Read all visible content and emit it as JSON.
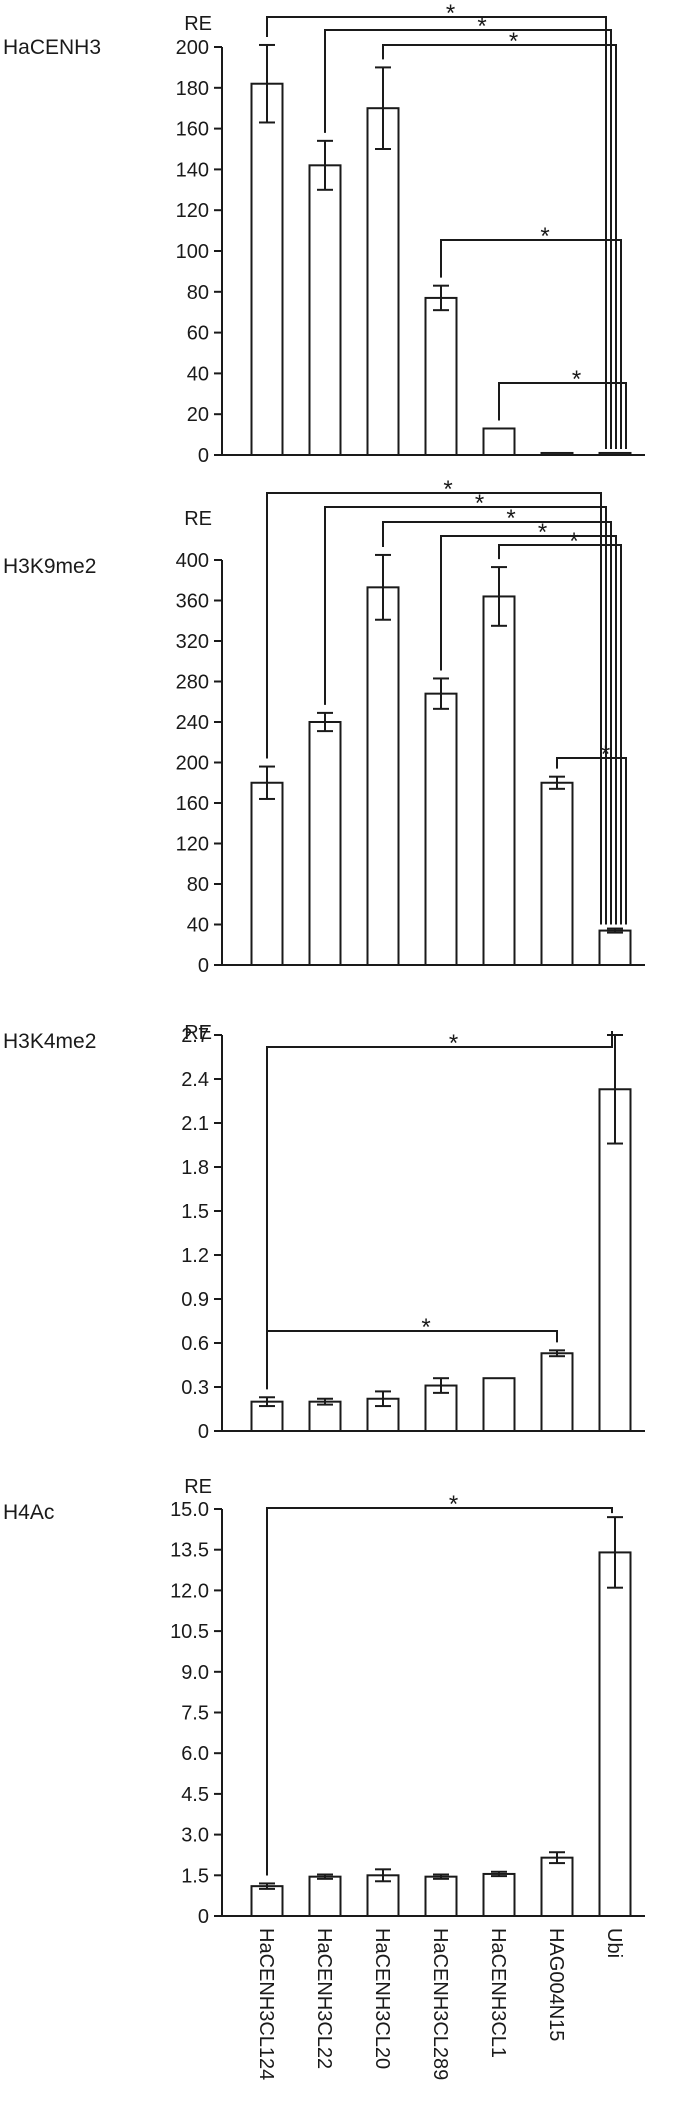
{
  "chart_data": {
    "type": "bar",
    "categories": [
      "HaCENH3CL124",
      "HaCENH3CL22",
      "HaCENH3CL20",
      "HaCENH3CL289",
      "HaCENH3CL1",
      "HAG004N15",
      "Ubi"
    ],
    "panels": [
      {
        "title": "HaCENH3",
        "ylabel": "RE",
        "ylim": [
          0,
          200
        ],
        "ticks": [
          "0",
          "20",
          "40",
          "60",
          "80",
          "100",
          "120",
          "140",
          "160",
          "180",
          "200"
        ],
        "series": [
          {
            "values": [
              182,
              142,
              170,
              77,
              13,
              1,
              1
            ],
            "errors": [
              19,
              12,
              20,
              6,
              0,
              0,
              0
            ]
          }
        ],
        "significance": [
          {
            "from": 0,
            "to": 6,
            "label": "*"
          },
          {
            "from": 1,
            "to": 6,
            "label": "*"
          },
          {
            "from": 2,
            "to": 6,
            "label": "*"
          },
          {
            "from": 3,
            "to": 6,
            "label": "*"
          },
          {
            "from": 4,
            "to": 6,
            "label": "*"
          }
        ]
      },
      {
        "title": "H3K9me2",
        "ylabel": "RE",
        "ylim": [
          0,
          400
        ],
        "ticks": [
          "0",
          "40",
          "80",
          "120",
          "160",
          "200",
          "240",
          "280",
          "320",
          "360",
          "400"
        ],
        "series": [
          {
            "values": [
              180,
              240,
              373,
              268,
              364,
              180,
              34
            ],
            "errors": [
              16,
              9,
              32,
              15,
              29,
              6,
              2
            ]
          }
        ],
        "significance": [
          {
            "from": 0,
            "to": 6,
            "label": "*"
          },
          {
            "from": 1,
            "to": 6,
            "label": "*"
          },
          {
            "from": 2,
            "to": 6,
            "label": "*"
          },
          {
            "from": 3,
            "to": 6,
            "label": "*"
          },
          {
            "from": 4,
            "to": 6,
            "label": "*"
          },
          {
            "from": 5,
            "to": 6,
            "label": "*"
          }
        ]
      },
      {
        "title": "H3K4me2",
        "ylabel": "RE",
        "ylim": [
          0,
          2.7
        ],
        "ticks": [
          "0",
          "0.3",
          "0.6",
          "0.9",
          "1.2",
          "1.5",
          "1.8",
          "2.1",
          "2.4",
          "2.7"
        ],
        "series": [
          {
            "values": [
              0.2,
              0.2,
              0.22,
              0.31,
              0.36,
              0.53,
              2.33
            ],
            "errors": [
              0.03,
              0.02,
              0.05,
              0.05,
              0,
              0.02,
              0.37
            ]
          }
        ],
        "significance": [
          {
            "from": 0,
            "to": 6,
            "label": "*"
          },
          {
            "from": 0,
            "to": 5,
            "label": "*"
          }
        ]
      },
      {
        "title": "H4Ac",
        "ylabel": "RE",
        "ylim": [
          0,
          15.0
        ],
        "ticks": [
          "0",
          "1.5",
          "3.0",
          "4.5",
          "6.0",
          "7.5",
          "9.0",
          "10.5",
          "12.0",
          "13.5",
          "15.0"
        ],
        "series": [
          {
            "values": [
              1.1,
              1.45,
              1.5,
              1.45,
              1.55,
              2.15,
              13.4
            ],
            "errors": [
              0.1,
              0.08,
              0.22,
              0.08,
              0.08,
              0.2,
              1.3
            ]
          }
        ],
        "significance": [
          {
            "from": 0,
            "to": 6,
            "label": "*"
          }
        ]
      }
    ]
  }
}
